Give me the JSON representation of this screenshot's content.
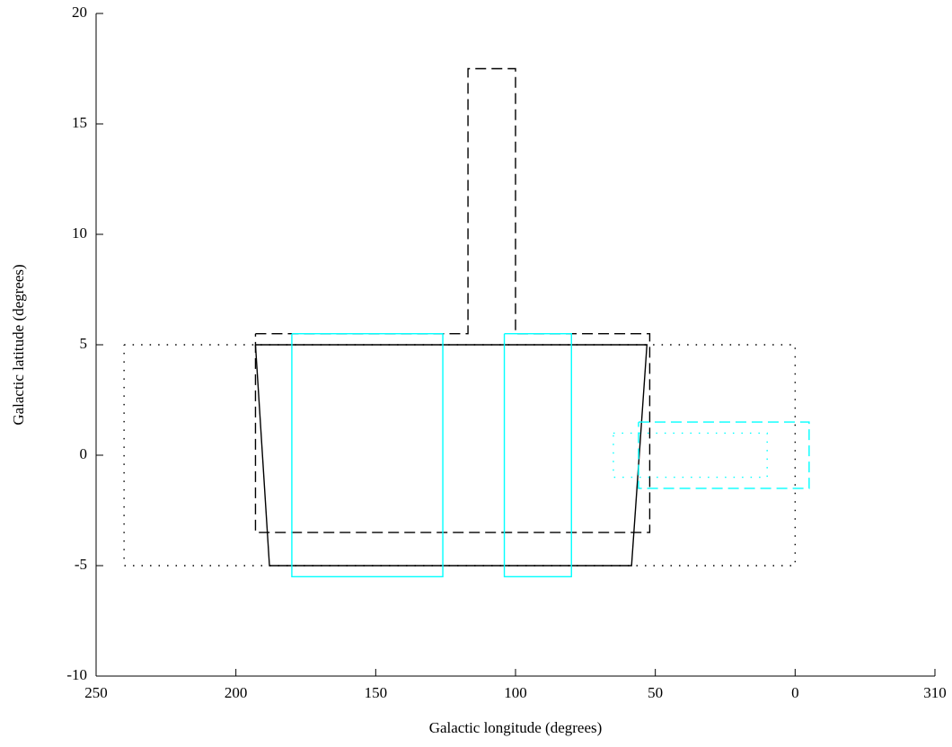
{
  "chart_data": {
    "type": "line",
    "xlabel": "Galactic longitude (degrees)",
    "ylabel": "Galactic latitude (degrees)",
    "xlim": [
      250,
      -50
    ],
    "ylim": [
      -10,
      20
    ],
    "xticks": [
      250,
      200,
      150,
      100,
      50,
      0,
      {
        "value": -50,
        "label": "310"
      }
    ],
    "yticks": [
      -10,
      -5,
      0,
      5,
      10,
      15,
      20
    ],
    "series": [
      {
        "color": "#000000",
        "linestyle": "dotted",
        "x": [
          240,
          0,
          0,
          240,
          240
        ],
        "values": [
          5,
          5,
          -5,
          -5,
          5
        ]
      },
      {
        "color": "#000000",
        "linestyle": "solid",
        "x": [
          193,
          53,
          58.5,
          188,
          193
        ],
        "values": [
          5,
          5,
          -5,
          -5,
          5
        ]
      },
      {
        "color": "#000000",
        "linestyle": "dashed",
        "x": [
          193,
          117,
          117,
          100,
          100,
          52,
          52,
          193,
          193
        ],
        "values": [
          5.5,
          5.5,
          17.5,
          17.5,
          5.5,
          5.5,
          -3.5,
          -3.5,
          5.5
        ]
      },
      {
        "color": "#00ffff",
        "linestyle": "solid",
        "x": [
          180,
          126,
          126,
          180,
          180
        ],
        "values": [
          5.5,
          5.5,
          -5.5,
          -5.5,
          5.5
        ]
      },
      {
        "color": "#00ffff",
        "linestyle": "solid",
        "x": [
          104,
          80,
          80,
          104,
          104
        ],
        "values": [
          5.5,
          5.5,
          -5.5,
          -5.5,
          5.5
        ]
      },
      {
        "color": "#00ffff",
        "linestyle": "dotted",
        "x": [
          65,
          10,
          10,
          65,
          65
        ],
        "values": [
          1,
          1,
          -1,
          -1,
          1
        ]
      },
      {
        "color": "#00ffff",
        "linestyle": "dashed",
        "x": [
          56,
          -5,
          -5,
          56,
          56
        ],
        "values": [
          1.5,
          1.5,
          -1.5,
          -1.5,
          1.5
        ]
      }
    ]
  }
}
